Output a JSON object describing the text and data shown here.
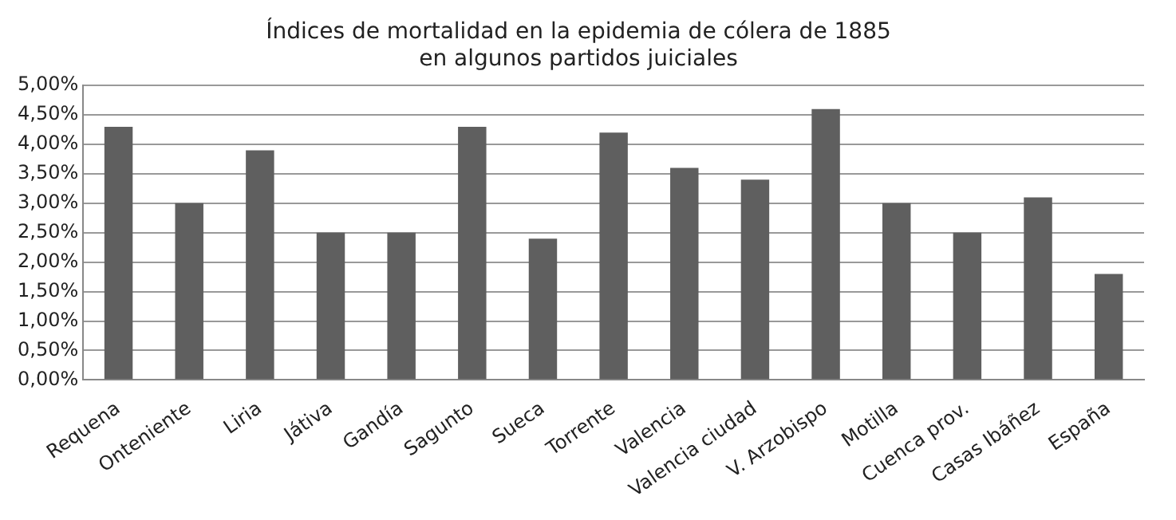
{
  "chart_data": {
    "type": "bar",
    "title": [
      "Índices de mortalidad en la epidemia de cólera de 1885",
      "en algunos partidos juiciales"
    ],
    "categories": [
      "Requena",
      "Onteniente",
      "Liria",
      "Játiva",
      "Gandía",
      "Sagunto",
      "Sueca",
      "Torrente",
      "Valencia",
      "Valencia ciudad",
      "V. Arzobispo",
      "Motilla",
      "Cuenca prov.",
      "Casas Ibáñez",
      "España"
    ],
    "values": [
      4.3,
      3.0,
      3.9,
      2.5,
      2.5,
      4.3,
      2.4,
      4.2,
      3.6,
      3.4,
      4.6,
      3.0,
      2.5,
      3.1,
      1.8
    ],
    "color": "#5f5f5f",
    "ylim": [
      0,
      5
    ],
    "yticks": [
      {
        "value": 0,
        "label": "0,00%"
      },
      {
        "value": 0.5,
        "label": "0,50%"
      },
      {
        "value": 1,
        "label": "1,00%"
      },
      {
        "value": 1.5,
        "label": "1,50%"
      },
      {
        "value": 2,
        "label": "2,00%"
      },
      {
        "value": 2.5,
        "label": "2,50%"
      },
      {
        "value": 3,
        "label": "3,00%"
      },
      {
        "value": 3.5,
        "label": "3,50%"
      },
      {
        "value": 4,
        "label": "4,00%"
      },
      {
        "value": 4.5,
        "label": "4,50%"
      },
      {
        "value": 5,
        "label": "5,00%"
      }
    ],
    "grid": "y",
    "legend": false
  }
}
